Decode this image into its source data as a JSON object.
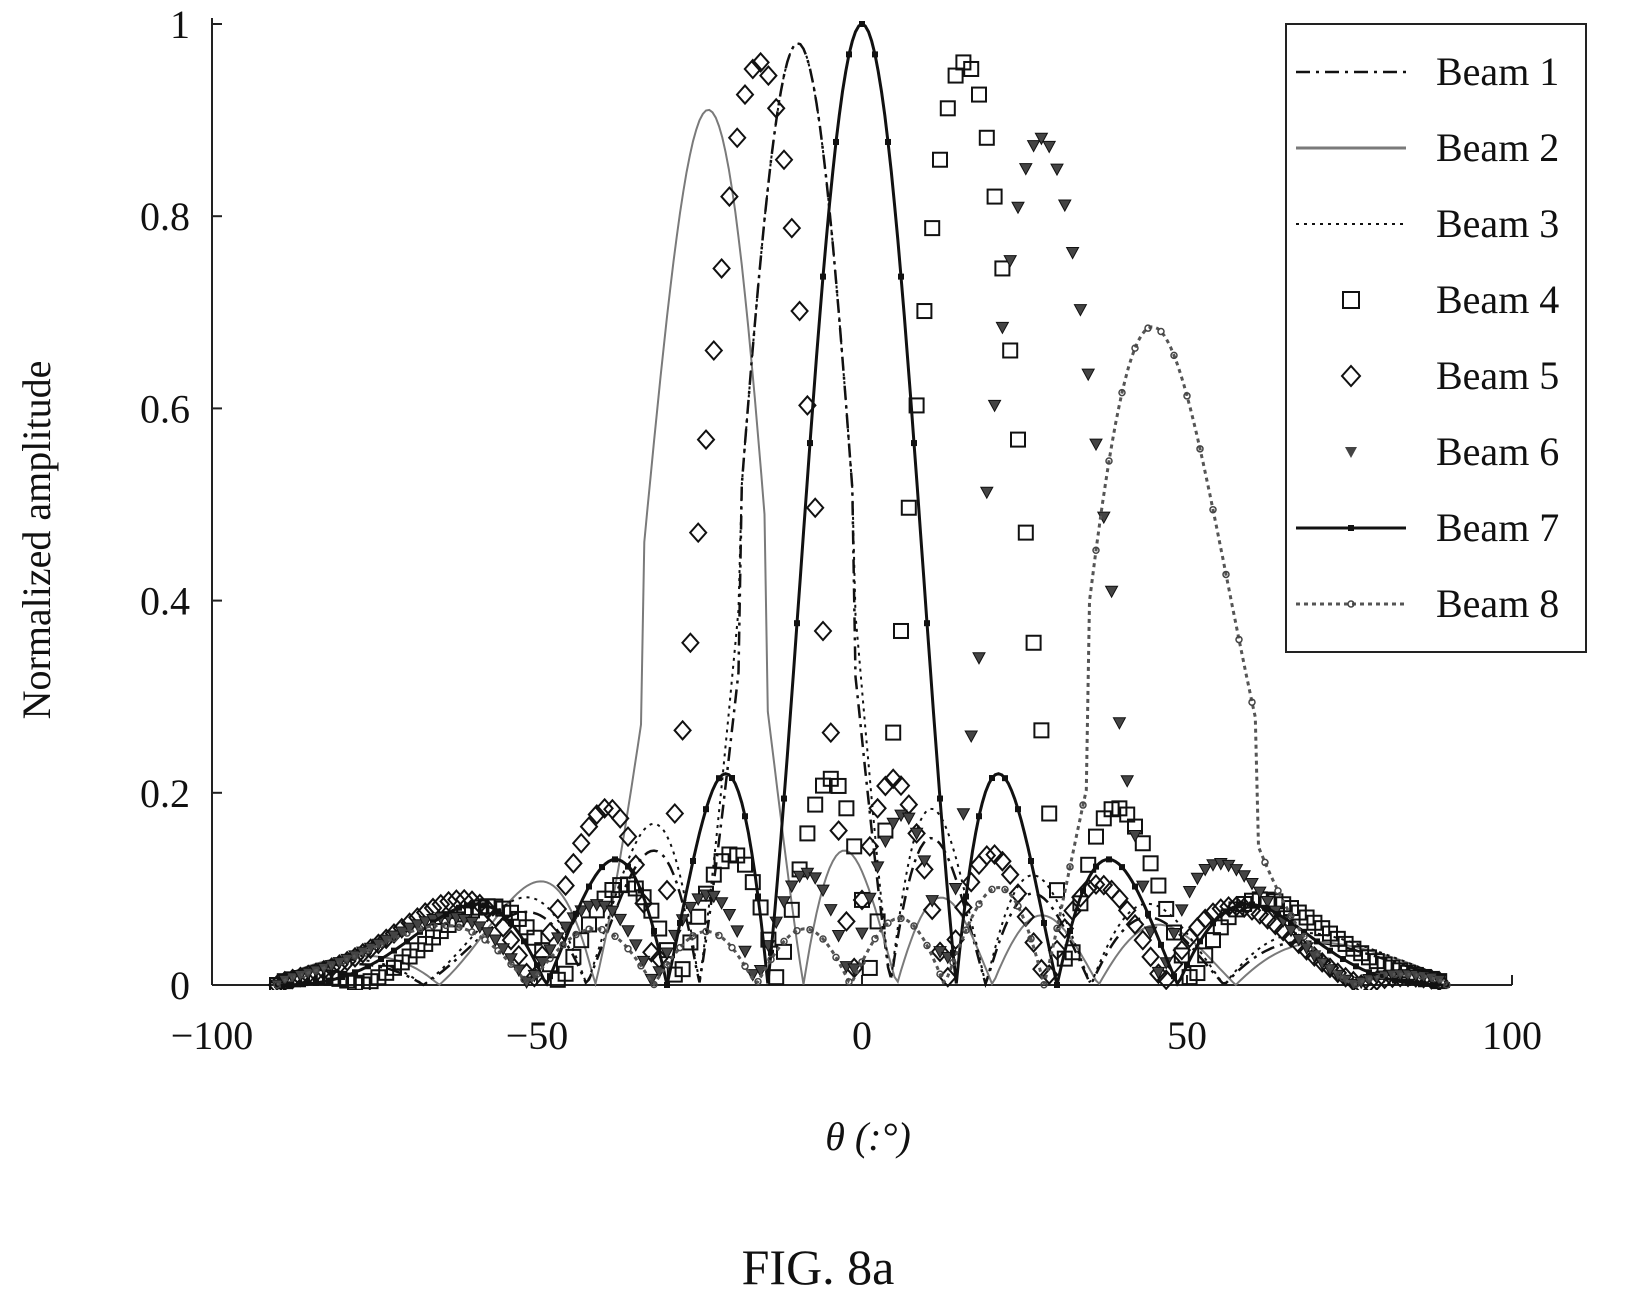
{
  "figure_caption": "FIG. 8a",
  "chart_data": {
    "type": "line",
    "title": "",
    "xlabel": "θ (:°)",
    "ylabel": "Normalized amplitude",
    "xlim": [
      -100,
      100
    ],
    "ylim": [
      0,
      1
    ],
    "x_ticks": [
      -100,
      -50,
      0,
      50,
      100
    ],
    "x_tick_labels": [
      "−100",
      "−50",
      "0",
      "50",
      "100"
    ],
    "y_ticks": [
      0,
      0.2,
      0.4,
      0.6,
      0.8,
      1
    ],
    "y_tick_labels": [
      "0",
      "0.2",
      "0.4",
      "0.6",
      "0.8",
      "1"
    ],
    "grid": false,
    "legend_position": "top-right",
    "x_range": [
      -90,
      90
    ],
    "series": [
      {
        "name": "Beam 1",
        "style": "dashdot",
        "marker": "none",
        "peak_angle": -10,
        "peak_value": 0.98,
        "sidelobe_level": 0.15
      },
      {
        "name": "Beam 2",
        "style": "solid-thin",
        "marker": "none",
        "peak_angle": -24,
        "peak_value": 0.91,
        "sidelobe_level": 0.14
      },
      {
        "name": "Beam 3",
        "style": "dotted",
        "marker": "none",
        "peak_angle": -10,
        "peak_value": 0.98,
        "sidelobe_level": 0.18
      },
      {
        "name": "Beam 4",
        "style": "none",
        "marker": "square",
        "peak_angle": 16,
        "peak_value": 0.96,
        "sidelobe_level": 0.21
      },
      {
        "name": "Beam 5",
        "style": "none",
        "marker": "diamond",
        "peak_angle": -16,
        "peak_value": 0.96,
        "sidelobe_level": 0.21
      },
      {
        "name": "Beam 6",
        "style": "none",
        "marker": "triangle-down",
        "peak_angle": 28,
        "peak_value": 0.88,
        "sidelobe_level": 0.18
      },
      {
        "name": "Beam 7",
        "style": "solid-thick",
        "marker": "small-square",
        "peak_angle": 0,
        "peak_value": 1.0,
        "sidelobe_level": 0.22
      },
      {
        "name": "Beam 8",
        "style": "dotted-thick",
        "marker": "small-circle",
        "peak_angle": 46,
        "peak_value": 0.68,
        "sidelobe_level": 0.12
      }
    ]
  },
  "colors": {
    "axis": "#222222",
    "ink": "#111111",
    "gray_line": "#7a7a7a",
    "background": "#ffffff"
  }
}
